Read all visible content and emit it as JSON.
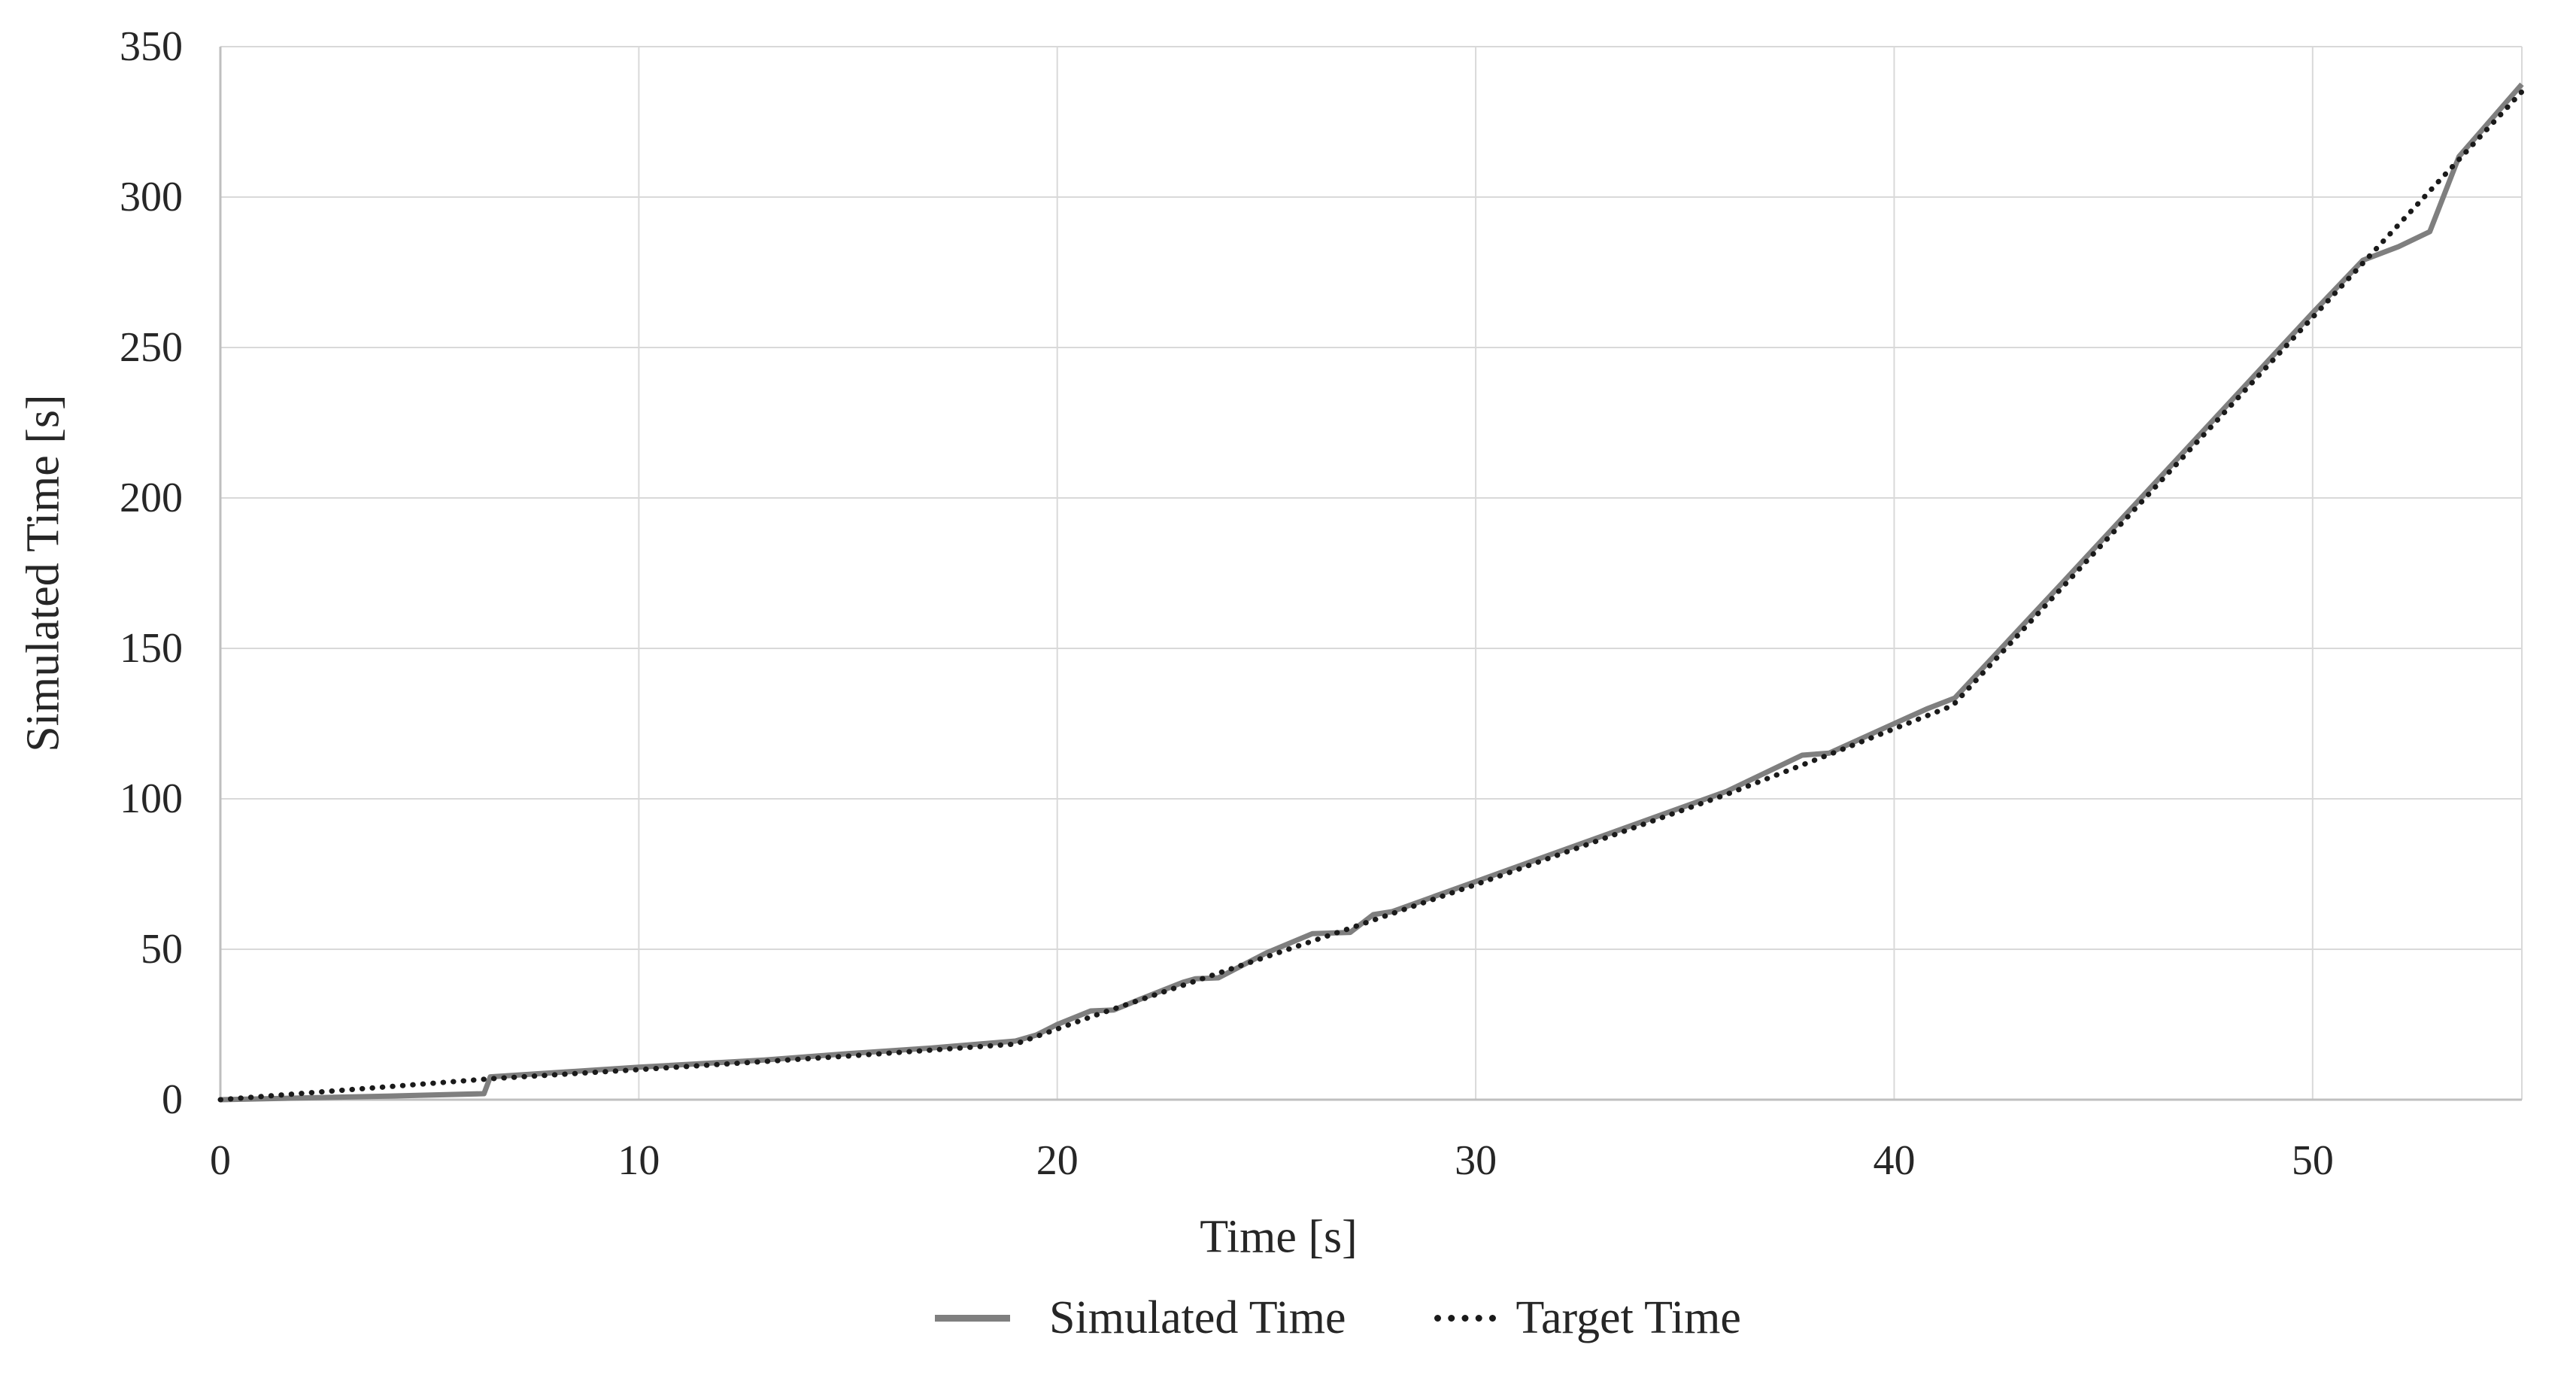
{
  "chart_data": {
    "type": "line",
    "title": "",
    "xlabel": "Time [s]",
    "ylabel": "Simulated Time [s]",
    "xlim": [
      0,
      55
    ],
    "ylim": [
      0,
      350
    ],
    "x_ticks": [
      0,
      10,
      20,
      30,
      40,
      50
    ],
    "y_ticks": [
      0,
      50,
      100,
      150,
      200,
      250,
      300,
      350
    ],
    "grid": true,
    "legend_position": "bottom-center",
    "colors": {
      "gridline": "#d9d9d9",
      "axis_line": "#bfbfbf",
      "tick_text": "#262626",
      "background": "#ffffff"
    },
    "series": [
      {
        "name": "Simulated Time",
        "color": "#7f7f7f",
        "style": "solid",
        "width": 7,
        "points": [
          [
            0,
            0
          ],
          [
            2,
            0.6
          ],
          [
            4,
            1.2
          ],
          [
            6.3,
            2
          ],
          [
            6.45,
            7.6
          ],
          [
            8,
            9
          ],
          [
            10,
            10.8
          ],
          [
            13,
            13.2
          ],
          [
            15,
            15.3
          ],
          [
            17,
            17.2
          ],
          [
            19,
            19.5
          ],
          [
            19.5,
            21.5
          ],
          [
            20,
            25
          ],
          [
            20.8,
            29.5
          ],
          [
            21.35,
            29.8
          ],
          [
            22,
            33.5
          ],
          [
            23,
            39
          ],
          [
            23.3,
            40.2
          ],
          [
            23.85,
            40.5
          ],
          [
            25,
            48.8
          ],
          [
            26.1,
            55.2
          ],
          [
            27,
            55.6
          ],
          [
            27.55,
            61.5
          ],
          [
            28,
            62.5
          ],
          [
            30,
            72.5
          ],
          [
            33,
            87.5
          ],
          [
            36,
            102.5
          ],
          [
            37.8,
            114.5
          ],
          [
            38.45,
            115.2
          ],
          [
            40,
            125
          ],
          [
            40.8,
            130
          ],
          [
            41.45,
            133.5
          ],
          [
            44,
            171.5
          ],
          [
            47,
            216.5
          ],
          [
            50,
            261.5
          ],
          [
            51.2,
            279
          ],
          [
            52.05,
            283.5
          ],
          [
            52.8,
            288.5
          ],
          [
            53.5,
            313.5
          ],
          [
            54,
            321.5
          ],
          [
            55,
            337.5
          ]
        ]
      },
      {
        "name": "Target Time",
        "color": "#1a1a1a",
        "style": "dotted",
        "width": 7,
        "points": [
          [
            0,
            0
          ],
          [
            6.5,
            7
          ],
          [
            10,
            10
          ],
          [
            15,
            14.5
          ],
          [
            19,
            18.5
          ],
          [
            20,
            23.5
          ],
          [
            21,
            28.5
          ],
          [
            23,
            38
          ],
          [
            25,
            47.5
          ],
          [
            27,
            57
          ],
          [
            30,
            71.5
          ],
          [
            33,
            86.5
          ],
          [
            36,
            101.5
          ],
          [
            38.5,
            115
          ],
          [
            41.4,
            131
          ],
          [
            44,
            170
          ],
          [
            47,
            215
          ],
          [
            50,
            260
          ],
          [
            53,
            305
          ],
          [
            55,
            335
          ]
        ]
      }
    ]
  }
}
